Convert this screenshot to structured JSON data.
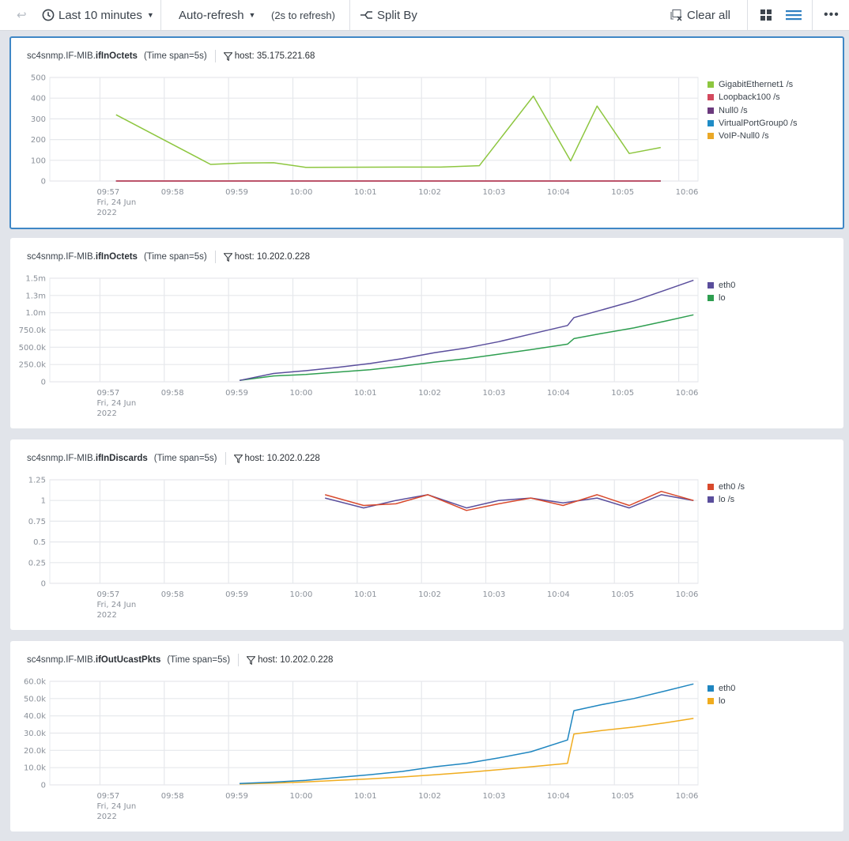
{
  "toolbar": {
    "time_range_label": "Last 10 minutes",
    "auto_refresh_label": "Auto-refresh",
    "refresh_countdown": "(2s to refresh)",
    "split_by_label": "Split By",
    "clear_all_label": "Clear all",
    "icons": [
      "undo-icon",
      "clock-icon",
      "split-icon",
      "clear-icon",
      "grid-view-icon",
      "list-view-icon",
      "more-icon"
    ]
  },
  "panels": [
    {
      "prefix": "sc4snmp.IF-MIB.",
      "metric": "ifInOctets",
      "span": "(Time span=5s)",
      "filter": "host: 35.175.221.68"
    },
    {
      "prefix": "sc4snmp.IF-MIB.",
      "metric": "ifInOctets",
      "span": "(Time span=5s)",
      "filter": "host: 10.202.0.228"
    },
    {
      "prefix": "sc4snmp.IF-MIB.",
      "metric": "ifInDiscards",
      "span": "(Time span=5s)",
      "filter": "host: 10.202.0.228"
    },
    {
      "prefix": "sc4snmp.IF-MIB.",
      "metric": "ifOutUcastPkts",
      "span": "(Time span=5s)",
      "filter": "host: 10.202.0.228"
    }
  ],
  "chart_data": [
    {
      "type": "line",
      "title": "sc4snmp.IF-MIB.ifInOctets",
      "xlabel": "",
      "ylabel": "",
      "x_unit": "minutes since 09:57",
      "xlim": [
        -0.78,
        9.3
      ],
      "x_ticks": [
        0,
        1,
        2,
        3,
        4,
        5,
        6,
        7,
        8,
        9
      ],
      "x_tick_labels": [
        "09:57",
        "09:58",
        "09:59",
        "10:00",
        "10:01",
        "10:02",
        "10:03",
        "10:04",
        "10:05",
        "10:06"
      ],
      "x_first_tick_sublabels": [
        "Fri, 24 Jun",
        "2022"
      ],
      "ylim": [
        0,
        500
      ],
      "y_ticks": [
        0,
        100,
        200,
        300,
        400,
        500
      ],
      "y_tick_labels": [
        "0",
        "100",
        "200",
        "300",
        "400",
        "500"
      ],
      "grid": true,
      "legend": "right",
      "series": [
        {
          "name": "GigabitEthernet1 /s",
          "color": "#8dc63f",
          "x": [
            0.25,
            1.72,
            2.22,
            2.7,
            3.2,
            4.67,
            5.3,
            5.9,
            6.74,
            7.32,
            7.73,
            8.23,
            8.72
          ],
          "y": [
            320,
            80,
            87,
            88,
            66,
            67,
            67,
            74,
            410,
            97,
            362,
            133,
            162
          ]
        },
        {
          "name": "Loopback100 /s",
          "color": "#d3495e",
          "x": [
            0.25,
            8.72
          ],
          "y": [
            0,
            0
          ]
        },
        {
          "name": "Null0 /s",
          "color": "#6b3a7d",
          "x": [
            0.25,
            8.72
          ],
          "y": [
            0,
            0
          ]
        },
        {
          "name": "VirtualPortGroup0 /s",
          "color": "#1f8cc6",
          "x": [
            0.25,
            8.72
          ],
          "y": [
            0,
            0
          ]
        },
        {
          "name": "VoIP-Null0 /s",
          "color": "#eaa827",
          "x": [
            0.25,
            8.72
          ],
          "y": [
            0,
            0
          ]
        }
      ]
    },
    {
      "type": "line",
      "title": "sc4snmp.IF-MIB.ifInOctets",
      "xlabel": "",
      "ylabel": "",
      "x_unit": "minutes since 09:57",
      "xlim": [
        -0.78,
        9.3
      ],
      "x_ticks": [
        0,
        1,
        2,
        3,
        4,
        5,
        6,
        7,
        8,
        9
      ],
      "x_tick_labels": [
        "09:57",
        "09:58",
        "09:59",
        "10:00",
        "10:01",
        "10:02",
        "10:03",
        "10:04",
        "10:05",
        "10:06"
      ],
      "x_first_tick_sublabels": [
        "Fri, 24 Jun",
        "2022"
      ],
      "ylim": [
        0,
        1500000
      ],
      "y_ticks": [
        0,
        250000,
        500000,
        750000,
        1000000,
        1250000,
        1500000
      ],
      "y_tick_labels": [
        "0",
        "250.0k",
        "500.0k",
        "750.0k",
        "1.0m",
        "1.3m",
        "1.5m"
      ],
      "grid": true,
      "legend": "right",
      "series": [
        {
          "name": "eth0",
          "color": "#5a4e9c",
          "x": [
            2.17,
            2.7,
            3.2,
            3.7,
            4.2,
            4.7,
            5.2,
            5.7,
            6.2,
            6.7,
            7.27,
            7.37,
            7.8,
            8.3,
            8.8,
            9.23
          ],
          "y": [
            20000,
            120000,
            160000,
            210000,
            265000,
            335000,
            420000,
            490000,
            580000,
            690000,
            815000,
            930000,
            1040000,
            1170000,
            1330000,
            1470000
          ]
        },
        {
          "name": "lo",
          "color": "#2e9e50",
          "x": [
            2.17,
            2.7,
            3.2,
            3.7,
            4.2,
            4.7,
            5.2,
            5.7,
            6.2,
            6.7,
            7.27,
            7.37,
            7.8,
            8.3,
            8.8,
            9.23
          ],
          "y": [
            20000,
            85000,
            105000,
            140000,
            175000,
            225000,
            285000,
            335000,
            400000,
            465000,
            545000,
            625000,
            700000,
            780000,
            880000,
            970000
          ]
        }
      ]
    },
    {
      "type": "line",
      "title": "sc4snmp.IF-MIB.ifInDiscards",
      "xlabel": "",
      "ylabel": "",
      "x_unit": "minutes since 09:57",
      "xlim": [
        -0.78,
        9.3
      ],
      "x_ticks": [
        0,
        1,
        2,
        3,
        4,
        5,
        6,
        7,
        8,
        9
      ],
      "x_tick_labels": [
        "09:57",
        "09:58",
        "09:59",
        "10:00",
        "10:01",
        "10:02",
        "10:03",
        "10:04",
        "10:05",
        "10:06"
      ],
      "x_first_tick_sublabels": [
        "Fri, 24 Jun",
        "2022"
      ],
      "ylim": [
        0,
        1.25
      ],
      "y_ticks": [
        0,
        0.25,
        0.5,
        0.75,
        1,
        1.25
      ],
      "y_tick_labels": [
        "0",
        "0.25",
        "0.5",
        "0.75",
        "1",
        "1.25"
      ],
      "grid": true,
      "legend": "right",
      "series": [
        {
          "name": "eth0 /s",
          "color": "#d8492c",
          "x": [
            3.5,
            4.1,
            4.6,
            5.1,
            5.7,
            6.2,
            6.7,
            7.2,
            7.73,
            8.23,
            8.73,
            9.23
          ],
          "y": [
            1.07,
            0.94,
            0.96,
            1.07,
            0.88,
            0.96,
            1.03,
            0.94,
            1.07,
            0.94,
            1.11,
            1.0
          ]
        },
        {
          "name": "lo /s",
          "color": "#5a4e9c",
          "x": [
            3.5,
            4.1,
            4.6,
            5.1,
            5.7,
            6.2,
            6.7,
            7.2,
            7.73,
            8.23,
            8.73,
            9.23
          ],
          "y": [
            1.03,
            0.91,
            1.0,
            1.07,
            0.91,
            1.0,
            1.03,
            0.97,
            1.03,
            0.91,
            1.07,
            1.0
          ]
        }
      ]
    },
    {
      "type": "line",
      "title": "sc4snmp.IF-MIB.ifOutUcastPkts",
      "xlabel": "",
      "ylabel": "",
      "x_unit": "minutes since 09:57",
      "xlim": [
        -0.78,
        9.3
      ],
      "x_ticks": [
        0,
        1,
        2,
        3,
        4,
        5,
        6,
        7,
        8,
        9
      ],
      "x_tick_labels": [
        "09:57",
        "09:58",
        "09:59",
        "10:00",
        "10:01",
        "10:02",
        "10:03",
        "10:04",
        "10:05",
        "10:06"
      ],
      "x_first_tick_sublabels": [
        "Fri, 24 Jun",
        "2022"
      ],
      "ylim": [
        0,
        60000
      ],
      "y_ticks": [
        0,
        10000,
        20000,
        30000,
        40000,
        50000,
        60000
      ],
      "y_tick_labels": [
        "0",
        "10.0k",
        "20.0k",
        "30.0k",
        "40.0k",
        "50.0k",
        "60.0k"
      ],
      "grid": true,
      "legend": "right",
      "series": [
        {
          "name": "eth0",
          "color": "#1f86c0",
          "x": [
            2.17,
            2.7,
            3.2,
            3.7,
            4.2,
            4.7,
            5.2,
            5.7,
            6.2,
            6.7,
            7.27,
            7.37,
            7.8,
            8.3,
            8.8,
            9.23
          ],
          "y": [
            800,
            1600,
            2600,
            4300,
            5900,
            7800,
            10500,
            12500,
            15600,
            19200,
            26000,
            43000,
            46500,
            50000,
            54500,
            58500
          ]
        },
        {
          "name": "lo",
          "color": "#f0ac1e",
          "x": [
            2.17,
            2.7,
            3.2,
            3.7,
            4.2,
            4.7,
            5.2,
            5.7,
            6.2,
            6.7,
            7.27,
            7.37,
            7.8,
            8.3,
            8.8,
            9.23
          ],
          "y": [
            500,
            1000,
            1700,
            2600,
            3500,
            4600,
            5800,
            7200,
            8800,
            10500,
            12500,
            29500,
            31500,
            33500,
            36000,
            38500
          ]
        }
      ]
    }
  ]
}
